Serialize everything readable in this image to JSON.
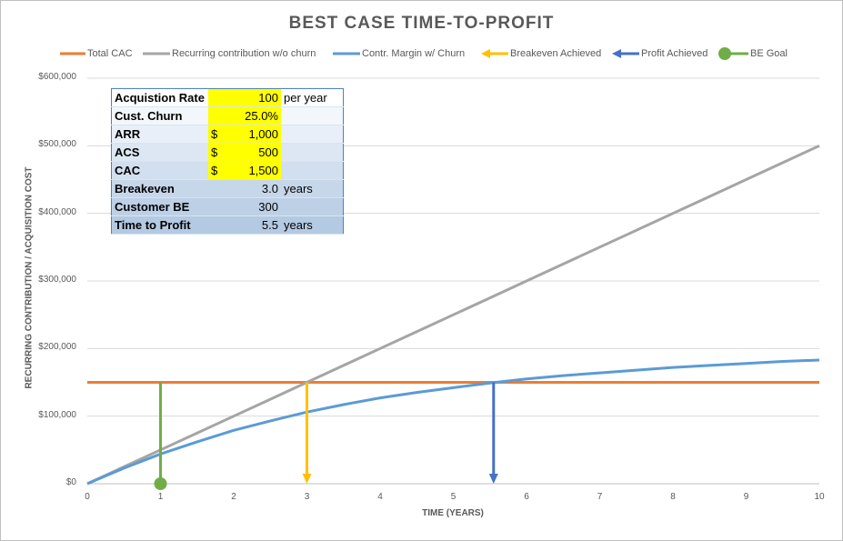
{
  "chart_data": {
    "type": "line",
    "title": "BEST CASE TIME-TO-PROFIT",
    "xlabel": "TIME (YEARS)",
    "ylabel": "RECURRING CONTRIBUTION / ACQUISITION COST",
    "xlim": [
      0,
      10
    ],
    "ylim": [
      0,
      600000
    ],
    "x_ticks": [
      "0",
      "1",
      "2",
      "3",
      "4",
      "5",
      "6",
      "7",
      "8",
      "9",
      "10"
    ],
    "y_ticks": [
      "$0",
      "$100,000",
      "$200,000",
      "$300,000",
      "$400,000",
      "$500,000",
      "$600,000"
    ],
    "grid": "horizontal",
    "legend_position": "top",
    "x": [
      0,
      0.5,
      1,
      1.5,
      2,
      2.5,
      3,
      3.5,
      4,
      4.5,
      5,
      5.5,
      6,
      6.5,
      7,
      7.5,
      8,
      8.5,
      9,
      9.5,
      10
    ],
    "series": [
      {
        "name": "Total CAC",
        "color": "#ed7d31",
        "values": [
          150000,
          150000,
          150000,
          150000,
          150000,
          150000,
          150000,
          150000,
          150000,
          150000,
          150000,
          150000,
          150000,
          150000,
          150000,
          150000,
          150000,
          150000,
          150000,
          150000,
          150000
        ]
      },
      {
        "name": "Recurring contribution w/o churn",
        "color": "#a5a5a5",
        "values": [
          0,
          25000,
          50000,
          75000,
          100000,
          125000,
          150000,
          175000,
          200000,
          225000,
          250000,
          275000,
          300000,
          325000,
          350000,
          375000,
          400000,
          425000,
          450000,
          475000,
          500000
        ]
      },
      {
        "name": "Contr. Margin w/ Churn",
        "color": "#5b9bd5",
        "values": [
          0,
          23000,
          44000,
          62000,
          79000,
          93000,
          106000,
          117000,
          127000,
          135000,
          142000,
          149000,
          155000,
          160000,
          164000,
          168000,
          172000,
          175000,
          178000,
          181000,
          183000
        ]
      }
    ],
    "markers": [
      {
        "name": "Breakeven Achieved",
        "color": "#ffc000",
        "x": 3.0,
        "y_from": 150000,
        "y_to": 0
      },
      {
        "name": "Profit Achieved",
        "color": "#4472c4",
        "x": 5.55,
        "y_from": 150000,
        "y_to": 0
      },
      {
        "name": "BE Goal",
        "color": "#70ad47",
        "x": 1.0,
        "y_from": 150000,
        "y_to": 0
      }
    ]
  },
  "legend": [
    {
      "label": "Total CAC",
      "color": "#ed7d31",
      "kind": "line"
    },
    {
      "label": "Recurring contribution w/o churn",
      "color": "#a5a5a5",
      "kind": "line"
    },
    {
      "label": "Contr. Margin w/ Churn",
      "color": "#5b9bd5",
      "kind": "line"
    },
    {
      "label": "Breakeven Achieved",
      "color": "#ffc000",
      "kind": "arrow"
    },
    {
      "label": "Profit Achieved",
      "color": "#4472c4",
      "kind": "arrow"
    },
    {
      "label": "BE Goal",
      "color": "#70ad47",
      "kind": "dot"
    }
  ],
  "table": {
    "rows": [
      {
        "label": "Acquistion Rate",
        "dollar": "",
        "value": "100",
        "unit": "per year",
        "highlight": true
      },
      {
        "label": "Cust. Churn",
        "dollar": "",
        "value": "25.0%",
        "unit": "",
        "highlight": true
      },
      {
        "label": "ARR",
        "dollar": "$",
        "value": "1,000",
        "unit": "",
        "highlight": true
      },
      {
        "label": "ACS",
        "dollar": "$",
        "value": "500",
        "unit": "",
        "highlight": true
      },
      {
        "label": "CAC",
        "dollar": "$",
        "value": "1,500",
        "unit": "",
        "highlight": true
      },
      {
        "label": "Breakeven",
        "dollar": "",
        "value": "3.0",
        "unit": "years",
        "highlight": false
      },
      {
        "label": "Customer BE",
        "dollar": "",
        "value": "300",
        "unit": "",
        "highlight": false
      },
      {
        "label": "Time to Profit",
        "dollar": "",
        "value": "5.5",
        "unit": "years",
        "highlight": false
      }
    ]
  }
}
